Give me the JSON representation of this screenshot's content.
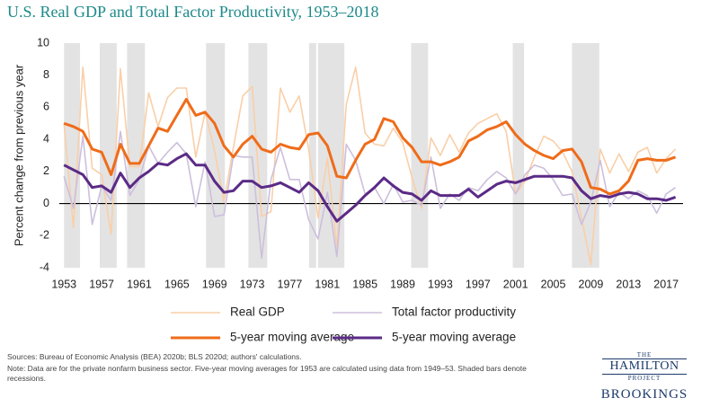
{
  "chart_data": {
    "type": "line",
    "title": "U.S. Real GDP and Total Factor Productivity, 1953–2018",
    "y_label": "Percent change from previous year",
    "x": [
      1953,
      1954,
      1955,
      1956,
      1957,
      1958,
      1959,
      1960,
      1961,
      1962,
      1963,
      1964,
      1965,
      1966,
      1967,
      1968,
      1969,
      1970,
      1971,
      1972,
      1973,
      1974,
      1975,
      1976,
      1977,
      1978,
      1979,
      1980,
      1981,
      1982,
      1983,
      1984,
      1985,
      1986,
      1987,
      1988,
      1989,
      1990,
      1991,
      1992,
      1993,
      1994,
      1995,
      1996,
      1997,
      1998,
      1999,
      2000,
      2001,
      2002,
      2003,
      2004,
      2005,
      2006,
      2007,
      2008,
      2009,
      2010,
      2011,
      2012,
      2013,
      2014,
      2015,
      2016,
      2017,
      2018
    ],
    "xlim": [
      1952.5,
      2018.8
    ],
    "xticks": [
      1953,
      1957,
      1961,
      1965,
      1969,
      1973,
      1977,
      1981,
      1985,
      1989,
      1993,
      1997,
      2001,
      2005,
      2009,
      2013,
      2017
    ],
    "ylim": [
      -4,
      10
    ],
    "yticks": [
      -4,
      -2,
      0,
      2,
      4,
      6,
      8,
      10
    ],
    "recessions": [
      [
        1953.0,
        1954.7
      ],
      [
        1956.8,
        1958.6
      ],
      [
        1959.7,
        1961.6
      ],
      [
        1968.1,
        1970.1
      ],
      [
        1972.6,
        1974.6
      ],
      [
        1979.05,
        1979.8
      ],
      [
        1980.0,
        1982.8
      ],
      [
        1989.9,
        1991.7
      ],
      [
        2000.7,
        2001.9
      ],
      [
        2007.0,
        2009.9
      ]
    ],
    "series": [
      {
        "name": "Real GDP",
        "color": "#f9cfa8",
        "width": 1.6,
        "values": [
          5.0,
          -1.5,
          8.5,
          2.2,
          1.8,
          -1.9,
          8.4,
          2.3,
          2.3,
          6.9,
          4.8,
          6.6,
          7.2,
          7.2,
          2.9,
          5.7,
          3.3,
          0.1,
          3.5,
          6.7,
          7.3,
          -0.8,
          -0.5,
          7.2,
          5.7,
          6.7,
          3.4,
          -0.9,
          2.8,
          -2.7,
          6.2,
          8.5,
          4.4,
          3.7,
          3.6,
          4.7,
          3.8,
          1.6,
          -0.3,
          4.1,
          3.0,
          4.3,
          3.2,
          4.4,
          5.0,
          5.3,
          5.6,
          4.5,
          0.6,
          1.4,
          2.9,
          4.2,
          3.9,
          3.2,
          2.0,
          -0.9,
          -3.8,
          3.4,
          1.9,
          3.1,
          2.0,
          3.2,
          3.5,
          1.9,
          2.8,
          3.4
        ]
      },
      {
        "name": "Total factor productivity",
        "color": "#cdbfdc",
        "width": 1.6,
        "values": [
          1.7,
          -0.3,
          4.2,
          -1.3,
          1.1,
          0.2,
          4.5,
          0.5,
          1.5,
          3.6,
          2.5,
          3.2,
          3.8,
          3.1,
          -0.2,
          2.6,
          -0.8,
          -0.7,
          3.0,
          2.9,
          2.9,
          -3.4,
          1.5,
          3.5,
          1.5,
          1.5,
          -1.0,
          -2.2,
          0.7,
          -3.3,
          3.7,
          2.7,
          0.6,
          1.0,
          0.0,
          1.2,
          0.1,
          0.2,
          -0.1,
          2.9,
          -0.3,
          0.6,
          0.2,
          1.0,
          0.8,
          1.5,
          2.0,
          1.6,
          0.6,
          1.8,
          2.4,
          2.2,
          1.5,
          0.5,
          0.6,
          -1.3,
          0.1,
          2.7,
          -0.2,
          0.7,
          0.3,
          0.8,
          0.5,
          -0.6,
          0.6,
          1.0
        ]
      },
      {
        "name": "5-year moving average",
        "color": "#ef6c1a",
        "width": 3,
        "values": [
          5.0,
          4.8,
          4.5,
          3.4,
          3.2,
          1.8,
          3.7,
          2.5,
          2.5,
          3.6,
          4.7,
          4.5,
          5.5,
          6.5,
          5.5,
          5.7,
          5.0,
          3.6,
          2.9,
          3.7,
          4.2,
          3.4,
          3.2,
          3.7,
          3.5,
          3.4,
          4.3,
          4.4,
          3.6,
          1.7,
          1.6,
          2.7,
          3.7,
          4.0,
          5.3,
          5.1,
          4.1,
          3.5,
          2.6,
          2.6,
          2.4,
          2.6,
          2.9,
          3.9,
          4.2,
          4.6,
          4.8,
          5.1,
          4.3,
          3.7,
          3.3,
          3.0,
          2.8,
          3.3,
          3.4,
          2.6,
          1.0,
          0.9,
          0.6,
          0.8,
          1.4,
          2.7,
          2.8,
          2.7,
          2.7,
          2.9
        ]
      },
      {
        "name": "5-year moving average",
        "color": "#5b2a86",
        "width": 3,
        "values": [
          2.4,
          2.1,
          1.8,
          1.0,
          1.1,
          0.7,
          1.9,
          1.0,
          1.6,
          2.0,
          2.5,
          2.4,
          2.8,
          3.1,
          2.4,
          2.4,
          1.4,
          0.7,
          0.8,
          1.4,
          1.4,
          1.0,
          1.1,
          1.3,
          1.0,
          0.7,
          1.3,
          0.8,
          -0.2,
          -1.1,
          -0.6,
          -0.1,
          0.5,
          1.0,
          1.6,
          1.1,
          0.7,
          0.6,
          0.2,
          0.8,
          0.5,
          0.5,
          0.5,
          0.9,
          0.4,
          0.8,
          1.2,
          1.4,
          1.3,
          1.5,
          1.7,
          1.7,
          1.7,
          1.7,
          1.6,
          0.8,
          0.3,
          0.5,
          0.4,
          0.6,
          0.7,
          0.6,
          0.3,
          0.3,
          0.2,
          0.4
        ]
      }
    ]
  },
  "footer": {
    "sources": "Sources: Bureau of Economic Analysis (BEA) 2020b; BLS 2020d; authors' calculations.",
    "note": "Note: Data are for the private nonfarm business sector. Five-year moving averages for 1953 are calculated using data from 1949–53. Shaded bars denote recessions.",
    "logo_the": "THE",
    "logo_hamilton": "HAMILTON",
    "logo_project": "PROJECT",
    "logo_brookings": "BROOKINGS"
  }
}
